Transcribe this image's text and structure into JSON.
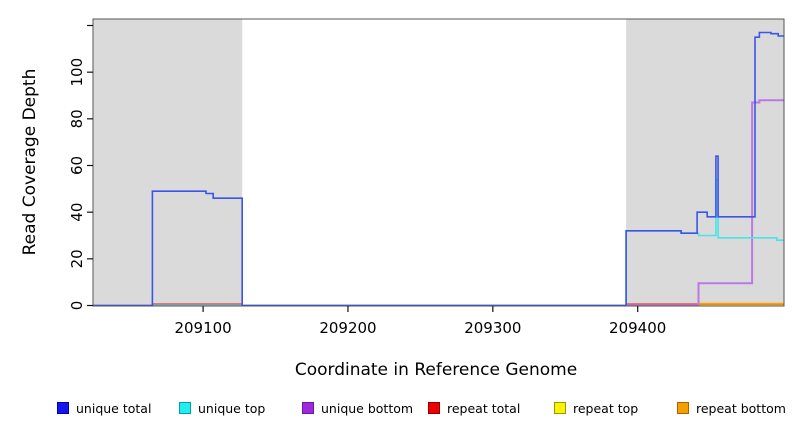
{
  "chart_data": {
    "type": "line",
    "step": true,
    "title": "",
    "xlabel": "Coordinate in Reference Genome",
    "ylabel": "Read Coverage Depth",
    "xlim": [
      209024,
      209501
    ],
    "ylim": [
      0,
      123
    ],
    "x_ticks": [
      209100,
      209200,
      209300,
      209400
    ],
    "x_tick_labels": [
      "209100",
      "209200",
      "209300",
      "209400"
    ],
    "y_ticks": [
      0,
      20,
      40,
      60,
      80,
      100,
      120
    ],
    "y_tick_labels": [
      "0",
      "20",
      "40",
      "60",
      "80",
      "100",
      ""
    ],
    "grid": false,
    "legend_position": "bottom",
    "shade_color": "#dadada",
    "shaded_regions": [
      {
        "x0": 209024,
        "x1": 209127
      },
      {
        "x0": 209392,
        "x1": 209501
      }
    ],
    "series": [
      {
        "name": "repeat top",
        "color": "#efee00",
        "points": [
          [
            209024,
            0
          ],
          [
            209501,
            0
          ]
        ]
      },
      {
        "name": "repeat total",
        "color": "#e45555",
        "points": [
          [
            209024,
            0
          ],
          [
            209065,
            0
          ],
          [
            209065,
            0.6
          ],
          [
            209127,
            0.6
          ],
          [
            209127,
            0
          ],
          [
            209392,
            0
          ],
          [
            209392,
            0.6
          ],
          [
            209501,
            0.6
          ]
        ]
      },
      {
        "name": "repeat bottom",
        "color": "#ffa013",
        "points": [
          [
            209024,
            0
          ],
          [
            209442,
            0
          ],
          [
            209442,
            0.8
          ],
          [
            209501,
            0.8
          ]
        ]
      },
      {
        "name": "unique bottom",
        "color": "#bb78e4",
        "points": [
          [
            209024,
            0
          ],
          [
            209442,
            0
          ],
          [
            209442,
            9.5
          ],
          [
            209479,
            9.5
          ],
          [
            209479,
            87
          ],
          [
            209484,
            87
          ],
          [
            209484,
            88
          ],
          [
            209501,
            88
          ]
        ]
      },
      {
        "name": "unique top",
        "color": "#48e4e8",
        "points": [
          [
            209024,
            0
          ],
          [
            209392,
            0
          ],
          [
            209392,
            32
          ],
          [
            209430,
            32
          ],
          [
            209430,
            31
          ],
          [
            209442,
            31
          ],
          [
            209442,
            30
          ],
          [
            209454,
            30
          ],
          [
            209454,
            54
          ],
          [
            209455.5,
            54
          ],
          [
            209455.5,
            29
          ],
          [
            209496,
            29
          ],
          [
            209496,
            28
          ],
          [
            209501,
            28
          ]
        ]
      },
      {
        "name": "unique total",
        "color": "#3a55e8",
        "points": [
          [
            209024,
            0
          ],
          [
            209065,
            0
          ],
          [
            209065,
            49
          ],
          [
            209102,
            49
          ],
          [
            209102,
            48
          ],
          [
            209107,
            48
          ],
          [
            209107,
            46
          ],
          [
            209127,
            46
          ],
          [
            209127,
            0
          ],
          [
            209392,
            0
          ],
          [
            209392,
            32
          ],
          [
            209430,
            32
          ],
          [
            209430,
            31
          ],
          [
            209441,
            31
          ],
          [
            209441,
            40
          ],
          [
            209448,
            40
          ],
          [
            209448,
            38
          ],
          [
            209454,
            38
          ],
          [
            209454,
            64
          ],
          [
            209455.5,
            64
          ],
          [
            209455.5,
            38
          ],
          [
            209481,
            38
          ],
          [
            209481,
            115
          ],
          [
            209484,
            115
          ],
          [
            209484,
            117
          ],
          [
            209492,
            117
          ],
          [
            209492,
            116.5
          ],
          [
            209497,
            116.5
          ],
          [
            209497,
            115.5
          ],
          [
            209501,
            115.5
          ]
        ]
      }
    ]
  },
  "legend": {
    "items": [
      {
        "label": "unique total",
        "fill": "#1414ee",
        "border": "#0000a0"
      },
      {
        "label": "unique top",
        "fill": "#22eef2",
        "border": "#00a0a8"
      },
      {
        "label": "unique bottom",
        "fill": "#a228e0",
        "border": "#6a1b9a"
      },
      {
        "label": "repeat total",
        "fill": "#f00000",
        "border": "#900000"
      },
      {
        "label": "repeat top",
        "fill": "#fbf400",
        "border": "#9a9a00"
      },
      {
        "label": "repeat bottom",
        "fill": "#f5a000",
        "border": "#a86400"
      }
    ]
  },
  "axis": {
    "tick_color": "#111111",
    "border_color": "#555555"
  }
}
